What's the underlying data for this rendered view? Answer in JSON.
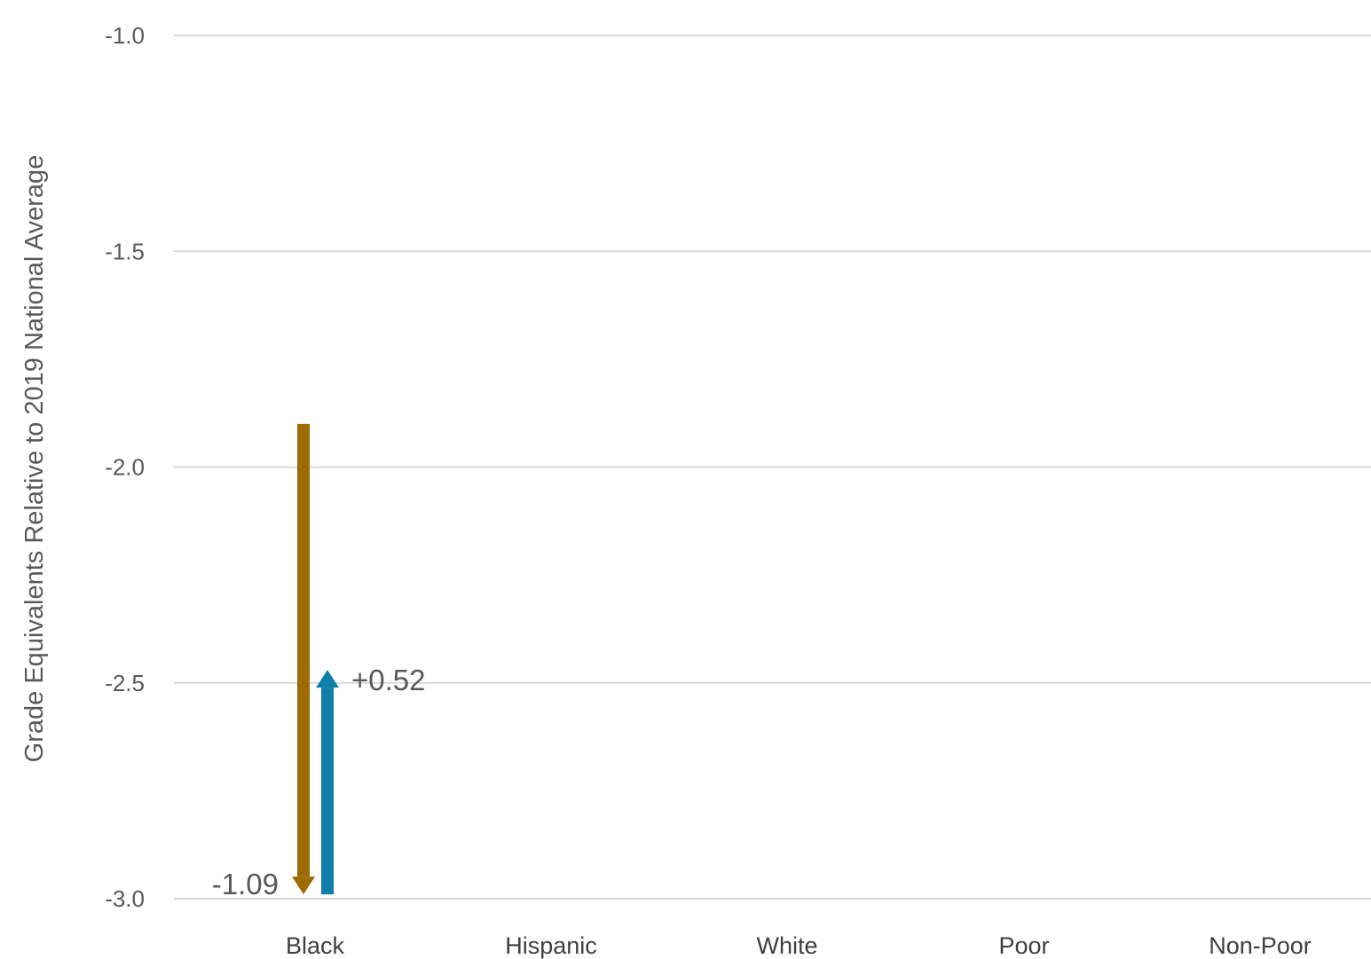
{
  "chart_data": {
    "type": "arrow",
    "ylabel": "Grade Equivalents Relative to 2019 National Average",
    "ylim": [
      -3.0,
      -1.0
    ],
    "yticks": [
      "-1.0",
      "-1.5",
      "-2.0",
      "-2.5",
      "-3.0"
    ],
    "ytick_values": [
      -1.0,
      -1.5,
      -2.0,
      -2.5,
      -3.0
    ],
    "categories": [
      "Black",
      "Hispanic",
      "White",
      "Poor",
      "Non-Poor"
    ],
    "grid": true,
    "series": [
      {
        "color": "#9e6a03",
        "direction": "down",
        "points": [
          {
            "category": "Black",
            "start": -1.9,
            "end": -2.99,
            "label": "-1.09"
          }
        ]
      },
      {
        "color": "#0e7fa6",
        "direction": "up",
        "points": [
          {
            "category": "Black",
            "start": -2.99,
            "end": -2.47,
            "label": "+0.52"
          }
        ]
      }
    ]
  }
}
